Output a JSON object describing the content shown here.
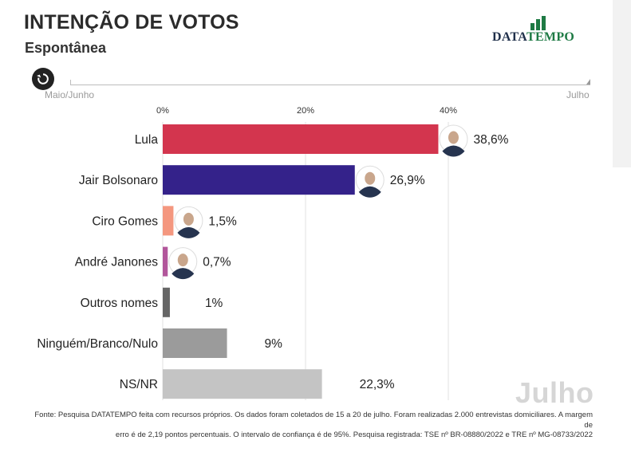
{
  "header": {
    "title": "INTENÇÃO DE VOTOS",
    "subtitle": "Espontânea"
  },
  "logo": {
    "part1": "DATA",
    "part2": "TEMPO",
    "icon": "bar-chart-logo-icon",
    "colors": {
      "dark": "#1f2f4a",
      "green": "#1e7a44"
    }
  },
  "timeline": {
    "start_label": "Maio/Junho",
    "end_label": "Julho",
    "replay_icon": "replay-icon"
  },
  "watermark": "Julho",
  "footer": {
    "line1": "Fonte: Pesquisa DATATEMPO feita com recursos próprios. Os dados foram coletados de 15 a 20 de julho. Foram realizadas 2.000 entrevistas domiciliares. A margem de",
    "line2": "erro é de 2,19 pontos percentuais. O intervalo de confiança é de 95%. Pesquisa registrada: TSE nº BR-08880/2022 e TRE nº MG-08733/2022"
  },
  "chart_data": {
    "type": "bar",
    "orientation": "horizontal",
    "xlim": [
      0,
      60
    ],
    "ticks": [
      {
        "value": 0,
        "label": "0%"
      },
      {
        "value": 20,
        "label": "20%"
      },
      {
        "value": 40,
        "label": "40%"
      }
    ],
    "grid": true,
    "bars": [
      {
        "category": "Lula",
        "value": 38.6,
        "label": "38,6%",
        "color": "#d3354e",
        "photo": true
      },
      {
        "category": "Jair Bolsonaro",
        "value": 26.9,
        "label": "26,9%",
        "color": "#34228a",
        "photo": true
      },
      {
        "category": "Ciro Gomes",
        "value": 1.5,
        "label": "1,5%",
        "color": "#f4977f",
        "photo": true
      },
      {
        "category": "André Janones",
        "value": 0.7,
        "label": "0,7%",
        "color": "#b2569b",
        "photo": true
      },
      {
        "category": "Outros nomes",
        "value": 1,
        "label": "1%",
        "color": "#666666",
        "photo": false
      },
      {
        "category": "Ninguém/Branco/Nulo",
        "value": 9,
        "label": "9%",
        "color": "#9b9b9b",
        "photo": false
      },
      {
        "category": "NS/NR",
        "value": 22.3,
        "label": "22,3%",
        "color": "#c4c4c4",
        "photo": false
      }
    ]
  }
}
